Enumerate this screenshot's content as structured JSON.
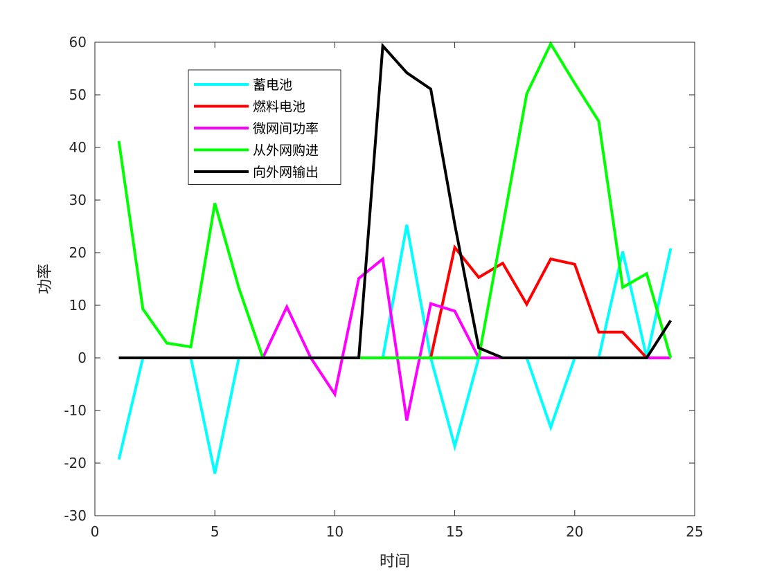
{
  "chart_data": {
    "type": "line",
    "title": "",
    "xlabel": "时间",
    "ylabel": "功率",
    "xlim": [
      0,
      25
    ],
    "ylim": [
      -30,
      60
    ],
    "xticks": [
      0,
      5,
      10,
      15,
      20,
      25
    ],
    "yticks": [
      -30,
      -20,
      -10,
      0,
      10,
      20,
      30,
      40,
      50,
      60
    ],
    "grid": false,
    "legend_position": "top-left",
    "x": [
      1,
      2,
      3,
      4,
      5,
      6,
      7,
      8,
      9,
      10,
      11,
      12,
      13,
      14,
      15,
      16,
      17,
      18,
      19,
      20,
      21,
      22,
      23,
      24
    ],
    "series": [
      {
        "name": "蓄电池",
        "color": "#00ffff",
        "values": [
          -19.3,
          0,
          0,
          0,
          -22,
          0,
          0,
          0,
          0,
          0,
          0,
          0,
          25.3,
          0,
          -16.8,
          0,
          0,
          0,
          -13.2,
          0,
          0,
          20.2,
          0,
          20.8
        ]
      },
      {
        "name": "燃料电池",
        "color": "#ff0000",
        "values": [
          0,
          0,
          0,
          0,
          0,
          0,
          0,
          0,
          0,
          0,
          0,
          0,
          0,
          0,
          21,
          15.3,
          18,
          10.2,
          18.8,
          17.8,
          4.9,
          4.9,
          0,
          0
        ]
      },
      {
        "name": "微网间功率",
        "color": "#ff00ff",
        "values": [
          0,
          0,
          0,
          0,
          0,
          0,
          0,
          9.7,
          0,
          -6.9,
          15.1,
          18.8,
          -11.9,
          10.3,
          8.9,
          0,
          0,
          0,
          0,
          0,
          0,
          0,
          0,
          0
        ]
      },
      {
        "name": "从外网购进",
        "color": "#00ff00",
        "values": [
          41.2,
          9.3,
          2.8,
          2.1,
          29.4,
          13.3,
          0,
          0,
          0,
          0,
          0,
          0,
          0,
          0,
          0,
          0,
          25,
          50.2,
          59.7,
          52.2,
          45,
          13.4,
          16,
          0
        ]
      },
      {
        "name": "向外网输出",
        "color": "#000000",
        "values": [
          0,
          0,
          0,
          0,
          0,
          0,
          0,
          0,
          0,
          0,
          0,
          59.3,
          54.2,
          51.1,
          25.4,
          1.9,
          0,
          0,
          0,
          0,
          0,
          0,
          0,
          7.1
        ]
      }
    ]
  }
}
